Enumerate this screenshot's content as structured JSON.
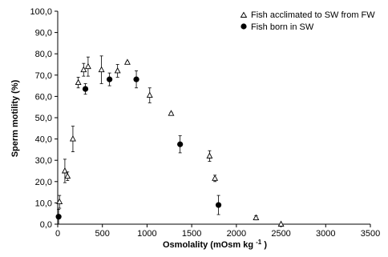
{
  "chart_data": {
    "type": "scatter",
    "xlabel": "Osmolality (mOsm kg",
    "xlabel_superscript": "-1",
    "xlabel_suffix": ")",
    "ylabel": "Sperm motility (%)",
    "xlim": [
      0,
      3500
    ],
    "ylim": [
      0,
      100
    ],
    "x_ticks": [
      "0",
      "500",
      "1000",
      "1500",
      "2000",
      "2500",
      "3000",
      "3500"
    ],
    "y_ticks": [
      "0,0",
      "10,0",
      "20,0",
      "30,0",
      "40,0",
      "50,0",
      "60,0",
      "70,0",
      "80,0",
      "90,0",
      "100,0"
    ],
    "grid": false,
    "legend_position": "top-right",
    "series": [
      {
        "name": "Fish acclimated to SW from FW",
        "marker": "open-triangle",
        "color": "#000000",
        "points": [
          {
            "x": 20,
            "y": 10.5,
            "err": 3
          },
          {
            "x": 80,
            "y": 25,
            "err": 5.5
          },
          {
            "x": 110,
            "y": 22.5,
            "err": 2
          },
          {
            "x": 170,
            "y": 40,
            "err": 6
          },
          {
            "x": 230,
            "y": 66.5,
            "err": 2.5
          },
          {
            "x": 290,
            "y": 72.5,
            "err": 3
          },
          {
            "x": 340,
            "y": 74,
            "err": 4.5
          },
          {
            "x": 490,
            "y": 72.5,
            "err": 6.5
          },
          {
            "x": 670,
            "y": 72,
            "err": 3
          },
          {
            "x": 780,
            "y": 76,
            "err": 0.5
          },
          {
            "x": 1030,
            "y": 60.5,
            "err": 3.5
          },
          {
            "x": 1270,
            "y": 52,
            "err": 0.5
          },
          {
            "x": 1700,
            "y": 32,
            "err": 2.5
          },
          {
            "x": 1760,
            "y": 21.5,
            "err": 1.5
          },
          {
            "x": 2220,
            "y": 3,
            "err": 1
          },
          {
            "x": 2500,
            "y": 0,
            "err": 0
          }
        ]
      },
      {
        "name": "Fish born in SW",
        "marker": "filled-circle",
        "color": "#000000",
        "points": [
          {
            "x": 10,
            "y": 3.5,
            "err": 3.5
          },
          {
            "x": 310,
            "y": 63.5,
            "err": 2.5
          },
          {
            "x": 580,
            "y": 68,
            "err": 3
          },
          {
            "x": 880,
            "y": 68,
            "err": 4
          },
          {
            "x": 1370,
            "y": 37.5,
            "err": 4
          },
          {
            "x": 1800,
            "y": 9,
            "err": 4.5
          }
        ]
      }
    ]
  }
}
